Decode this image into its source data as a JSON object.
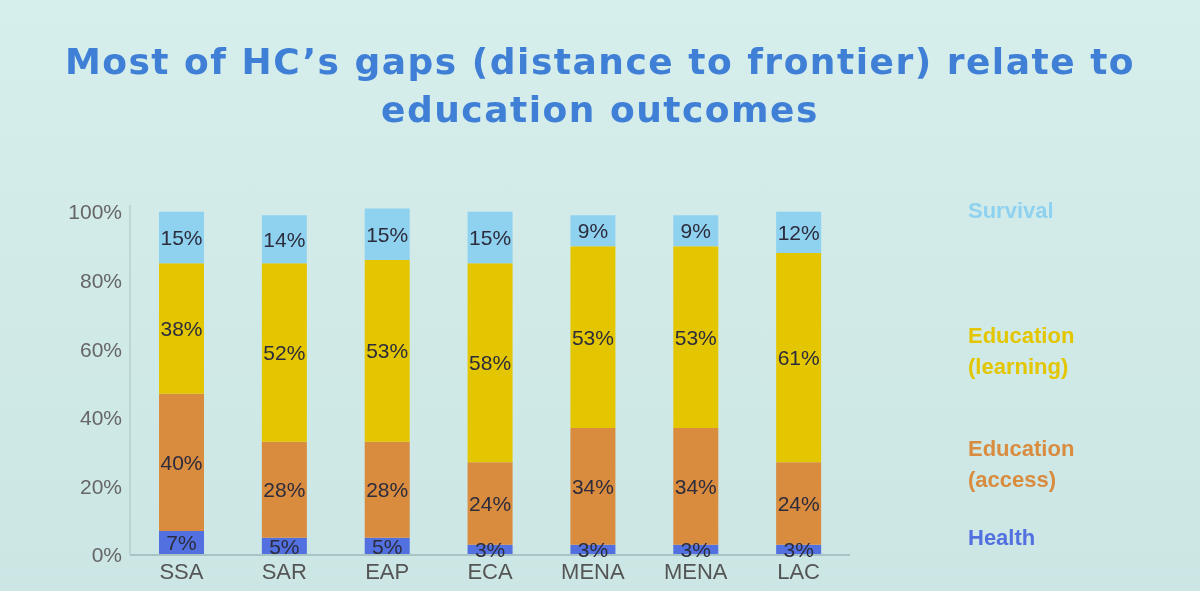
{
  "chart_data": {
    "type": "bar",
    "title": "Most of HC’s gaps (distance to frontier) relate to education outcomes",
    "categories": [
      "SSA",
      "SAR",
      "EAP",
      "ECA",
      "MENA",
      "MENA",
      "LAC"
    ],
    "stacked": true,
    "series": [
      {
        "name": "Health",
        "color": "#5270e0",
        "values": [
          7,
          5,
          5,
          3,
          3,
          3,
          3
        ],
        "value_labels": [
          "7%",
          "5%",
          "5%",
          "3%",
          "3%",
          "3%",
          "3%"
        ]
      },
      {
        "name": "Education (access)",
        "color": "#d98b3e",
        "values": [
          40,
          28,
          28,
          24,
          34,
          34,
          24
        ],
        "value_labels": [
          "40%",
          "28%",
          "28%",
          "24%",
          "34%",
          "34%",
          "24%"
        ]
      },
      {
        "name": "Education (learning)",
        "color": "#e3c600",
        "values": [
          38,
          52,
          53,
          58,
          53,
          53,
          61
        ],
        "value_labels": [
          "38%",
          "52%",
          "53%",
          "58%",
          "53%",
          "53%",
          "61%"
        ]
      },
      {
        "name": "Survival",
        "color": "#8fd2f0",
        "values": [
          15,
          14,
          15,
          15,
          9,
          9,
          12
        ],
        "value_labels": [
          "15%",
          "14%",
          "15%",
          "15%",
          "9%",
          "9%",
          "12%"
        ]
      }
    ],
    "ylim": [
      0,
      102
    ],
    "yticks": [
      {
        "value": 0,
        "label": "0%"
      },
      {
        "value": 20,
        "label": "20%"
      },
      {
        "value": 40,
        "label": "40%"
      },
      {
        "value": 60,
        "label": "60%"
      },
      {
        "value": 80,
        "label": "80%"
      },
      {
        "value": 100,
        "label": "100%"
      }
    ],
    "legend": "right"
  }
}
